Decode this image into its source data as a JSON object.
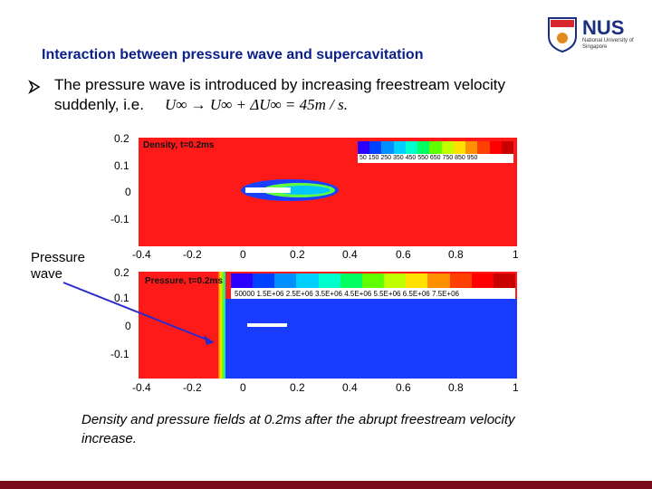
{
  "slide": {
    "title": "Interaction between pressure wave and supercavitation",
    "bullet_line1": "The pressure wave is introduced by increasing freestream velocity",
    "bullet_line2": "suddenly, i.e.",
    "formula": "U∞ → U∞ + ΔU∞ = 45m / s.",
    "caption": "Density and pressure fields at 0.2ms after the abrupt freestream velocity increase.",
    "pressure_wave_label": "Pressure wave"
  },
  "logo": {
    "name": "NUS",
    "subtitle": "National University of Singapore"
  },
  "density_plot": {
    "label": "Density, t=0.2ms",
    "y_ticks": [
      "0.2",
      "0.1",
      "0",
      "-0.1"
    ],
    "x_ticks": [
      "-0.4",
      "-0.2",
      "0",
      "0.2",
      "0.4",
      "0.6",
      "0.8",
      "1"
    ],
    "colorbar_labels": "50 150 250 350 450 550 650 750 850 950"
  },
  "pressure_plot": {
    "label": "Pressure, t=0.2ms",
    "y_ticks": [
      "0.2",
      "0.1",
      "0",
      "-0.1"
    ],
    "x_ticks": [
      "-0.4",
      "-0.2",
      "0",
      "0.2",
      "0.4",
      "0.6",
      "0.8",
      "1"
    ],
    "colorbar_labels": "50000 1.5E+06 2.5E+06 3.5E+06 4.5E+06 5.5E+06 6.5E+06 7.5E+06"
  },
  "colors": {
    "title": "#0a1f8a",
    "field_high": "#ff1a1a",
    "field_low": "#1a3cff",
    "bottom_bar": "#7a0a1a",
    "arrow": "#2a2acc"
  },
  "colorbar_colors": [
    "#2b00ff",
    "#0040ff",
    "#0090ff",
    "#00d0ff",
    "#00ffcc",
    "#00ff60",
    "#60ff00",
    "#c0ff00",
    "#ffe000",
    "#ff9000",
    "#ff4000",
    "#ff0000",
    "#c80000"
  ]
}
